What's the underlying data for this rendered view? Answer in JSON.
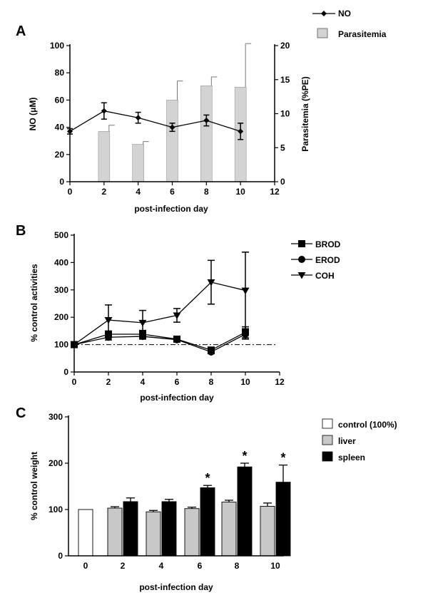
{
  "chart_data": [
    {
      "id": "A",
      "type": "bar+line",
      "panel_label": "A",
      "xlabel": "post-infection day",
      "ylabel_left": "NO (μM)",
      "ylabel_right": "Parasitemia (%PE)",
      "xlim": [
        0,
        12
      ],
      "xticks": [
        0,
        2,
        4,
        6,
        8,
        10,
        12
      ],
      "ylim_left": [
        0,
        100
      ],
      "yticks_left": [
        0,
        20,
        40,
        60,
        80,
        100
      ],
      "ylim_right": [
        0,
        20
      ],
      "yticks_right": [
        0,
        5,
        10,
        15,
        20
      ],
      "legend": [
        "NO",
        "Parasitemia"
      ],
      "parasitemia": {
        "name": "Parasitemia",
        "x": [
          2,
          4,
          6,
          8,
          10
        ],
        "values": [
          7.4,
          5.5,
          12,
          14.1,
          13.9
        ],
        "err": [
          0.9,
          0.4,
          2.8,
          1.3,
          6.4
        ],
        "color": "#d3d3d3"
      },
      "no": {
        "name": "NO",
        "x": [
          0,
          2,
          4,
          6,
          8,
          10
        ],
        "values": [
          37,
          52,
          47,
          40,
          45,
          37
        ],
        "err": [
          2,
          6,
          4,
          3,
          4,
          6
        ]
      }
    },
    {
      "id": "B",
      "type": "line",
      "panel_label": "B",
      "xlabel": "post-infection day",
      "ylabel": "% control activities",
      "xlim": [
        0,
        12
      ],
      "xticks": [
        0,
        2,
        4,
        6,
        8,
        10,
        12
      ],
      "ylim": [
        0,
        500
      ],
      "yticks": [
        0,
        100,
        200,
        300,
        400,
        500
      ],
      "reference_line": 100,
      "series": [
        {
          "name": "BROD",
          "marker": "square",
          "x": [
            0,
            2,
            4,
            6,
            8,
            10
          ],
          "values": [
            100,
            138,
            138,
            120,
            80,
            145
          ],
          "err": [
            0,
            12,
            14,
            10,
            8,
            20
          ]
        },
        {
          "name": "EROD",
          "marker": "circle",
          "x": [
            0,
            2,
            4,
            6,
            8,
            10
          ],
          "values": [
            100,
            127,
            130,
            118,
            73,
            138
          ],
          "err": [
            0,
            10,
            10,
            8,
            6,
            18
          ]
        },
        {
          "name": "COH",
          "marker": "triangle-down",
          "x": [
            0,
            2,
            4,
            6,
            8,
            10
          ],
          "values": [
            100,
            190,
            180,
            207,
            328,
            298
          ],
          "err": [
            0,
            55,
            45,
            25,
            80,
            140
          ]
        }
      ]
    },
    {
      "id": "C",
      "type": "bar",
      "panel_label": "C",
      "xlabel": "post-infection day",
      "ylabel": "% control weight",
      "ylim": [
        0,
        300
      ],
      "yticks": [
        0,
        100,
        200,
        300
      ],
      "categories": [
        "0",
        "2",
        "4",
        "6",
        "8",
        "10"
      ],
      "legend": [
        "control (100%)",
        "liver",
        "spleen"
      ],
      "control": {
        "name": "control (100%)",
        "values": [
          100
        ],
        "color": "#ffffff"
      },
      "series": [
        {
          "name": "liver",
          "color": "#c8c8c8",
          "values": [
            null,
            103,
            95,
            102,
            116,
            107
          ],
          "err": [
            null,
            3,
            3,
            3,
            4,
            7
          ]
        },
        {
          "name": "spleen",
          "color": "#000000",
          "values": [
            null,
            117,
            117,
            147,
            192,
            159
          ],
          "err": [
            null,
            8,
            5,
            5,
            8,
            37
          ]
        }
      ],
      "significance": {
        "marker": "*",
        "categories": [
          "6",
          "8",
          "10"
        ]
      }
    }
  ]
}
